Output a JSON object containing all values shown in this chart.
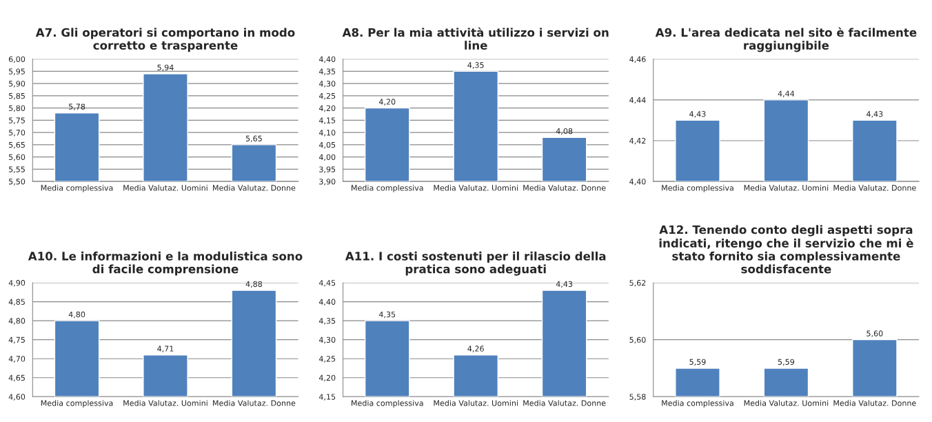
{
  "chart_data": [
    {
      "type": "bar",
      "title": "A7. Gli operatori si comportano in modo corretto e trasparente",
      "categories": [
        "Media complessiva",
        "Media Valutaz. Uomini",
        "Media Valutaz. Donne"
      ],
      "values": [
        5.78,
        5.94,
        5.65
      ],
      "value_labels": [
        "5,78",
        "5,94",
        "5,65"
      ],
      "color": "#4f81bd",
      "grid": "y",
      "ylim": [
        5.5,
        6.0
      ],
      "yticks": [
        {
          "value": 5.5,
          "label": "5,50"
        },
        {
          "value": 5.55,
          "label": "5,55"
        },
        {
          "value": 5.6,
          "label": "5,60"
        },
        {
          "value": 5.65,
          "label": "5,65"
        },
        {
          "value": 5.7,
          "label": "5,70"
        },
        {
          "value": 5.75,
          "label": "5,75"
        },
        {
          "value": 5.8,
          "label": "5,80"
        },
        {
          "value": 5.85,
          "label": "5,85"
        },
        {
          "value": 5.9,
          "label": "5,90"
        },
        {
          "value": 5.95,
          "label": "5,95"
        },
        {
          "value": 6.0,
          "label": "6,00"
        }
      ]
    },
    {
      "type": "bar",
      "title": "A8. Per la mia attività utilizzo i servizi on line",
      "categories": [
        "Media complessiva",
        "Media Valutaz. Uomini",
        "Media Valutaz. Donne"
      ],
      "values": [
        4.2,
        4.35,
        4.08
      ],
      "value_labels": [
        "4,20",
        "4,35",
        "4,08"
      ],
      "color": "#4f81bd",
      "grid": "y",
      "ylim": [
        3.9,
        4.4
      ],
      "yticks": [
        {
          "value": 3.9,
          "label": "3,90"
        },
        {
          "value": 3.95,
          "label": "3,95"
        },
        {
          "value": 4.0,
          "label": "4,00"
        },
        {
          "value": 4.05,
          "label": "4,05"
        },
        {
          "value": 4.1,
          "label": "4,10"
        },
        {
          "value": 4.15,
          "label": "4,15"
        },
        {
          "value": 4.2,
          "label": "4,20"
        },
        {
          "value": 4.25,
          "label": "4,25"
        },
        {
          "value": 4.3,
          "label": "4,30"
        },
        {
          "value": 4.35,
          "label": "4,35"
        },
        {
          "value": 4.4,
          "label": "4,40"
        }
      ]
    },
    {
      "type": "bar",
      "title": "A9. L'area dedicata nel sito è facilmente raggiungibile",
      "categories": [
        "Media complessiva",
        "Media Valutaz. Uomini",
        "Media Valutaz. Donne"
      ],
      "values": [
        4.43,
        4.44,
        4.43
      ],
      "value_labels": [
        "4,43",
        "4,44",
        "4,43"
      ],
      "color": "#4f81bd",
      "grid": "y",
      "ylim": [
        4.4,
        4.46
      ],
      "yticks": [
        {
          "value": 4.4,
          "label": "4,40"
        },
        {
          "value": 4.42,
          "label": "4,42"
        },
        {
          "value": 4.44,
          "label": "4,44"
        },
        {
          "value": 4.46,
          "label": "4,46"
        }
      ]
    },
    {
      "type": "bar",
      "title": "A10. Le informazioni e la modulistica sono di facile comprensione",
      "categories": [
        "Media complessiva",
        "Media Valutaz. Uomini",
        "Media Valutaz. Donne"
      ],
      "values": [
        4.8,
        4.71,
        4.88
      ],
      "value_labels": [
        "4,80",
        "4,71",
        "4,88"
      ],
      "color": "#4f81bd",
      "grid": "y",
      "ylim": [
        4.6,
        4.9
      ],
      "yticks": [
        {
          "value": 4.6,
          "label": "4,60"
        },
        {
          "value": 4.65,
          "label": "4,65"
        },
        {
          "value": 4.7,
          "label": "4,70"
        },
        {
          "value": 4.75,
          "label": "4,75"
        },
        {
          "value": 4.8,
          "label": "4,80"
        },
        {
          "value": 4.85,
          "label": "4,85"
        },
        {
          "value": 4.9,
          "label": "4,90"
        }
      ]
    },
    {
      "type": "bar",
      "title": "A11. I costi sostenuti per il rilascio della pratica sono adeguati",
      "categories": [
        "Media complessiva",
        "Media Valutaz. Uomini",
        "Media Valutaz. Donne"
      ],
      "values": [
        4.35,
        4.26,
        4.43
      ],
      "value_labels": [
        "4,35",
        "4,26",
        "4,43"
      ],
      "color": "#4f81bd",
      "grid": "y",
      "ylim": [
        4.15,
        4.45
      ],
      "yticks": [
        {
          "value": 4.15,
          "label": "4,15"
        },
        {
          "value": 4.2,
          "label": "4,20"
        },
        {
          "value": 4.25,
          "label": "4,25"
        },
        {
          "value": 4.3,
          "label": "4,30"
        },
        {
          "value": 4.35,
          "label": "4,35"
        },
        {
          "value": 4.4,
          "label": "4,40"
        },
        {
          "value": 4.45,
          "label": "4,45"
        }
      ]
    },
    {
      "type": "bar",
      "title": "A12. Tenendo conto degli aspetti sopra indicati, ritengo che il servizio che mi è stato fornito sia complessivamente soddisfacente",
      "categories": [
        "Media complessiva",
        "Media Valutaz. Uomini",
        "Media Valutaz. Donne"
      ],
      "values": [
        5.59,
        5.59,
        5.6
      ],
      "value_labels": [
        "5,59",
        "5,59",
        "5,60"
      ],
      "color": "#4f81bd",
      "grid": "y",
      "ylim": [
        5.58,
        5.62
      ],
      "yticks": [
        {
          "value": 5.58,
          "label": "5,58"
        },
        {
          "value": 5.6,
          "label": "5,60"
        },
        {
          "value": 5.62,
          "label": "5,62"
        }
      ]
    }
  ]
}
